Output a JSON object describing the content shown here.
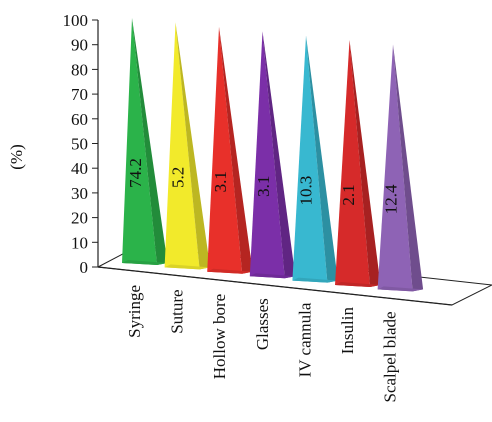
{
  "chart_data": {
    "type": "bar",
    "title": "",
    "xlabel": "",
    "ylabel": "(%)",
    "ylim": [
      0,
      100
    ],
    "yticks": [
      0,
      10,
      20,
      30,
      40,
      50,
      60,
      70,
      80,
      90,
      100
    ],
    "categories": [
      "Syringe",
      "Suture",
      "Hollow bore",
      "Glasses",
      "IV cannula",
      "Insulin",
      "Scalpel blade"
    ],
    "values": [
      74.2,
      5.2,
      3.1,
      3.1,
      10.3,
      2.1,
      12.4
    ],
    "data_labels": [
      "74.2",
      "5.2",
      "3.1",
      "3.1",
      "10.3",
      "2.1",
      "12.4"
    ],
    "bar_heights_percent": [
      100,
      100,
      100,
      100,
      100,
      100,
      100
    ],
    "colors": [
      "#2bb34a",
      "#f2ea2b",
      "#e8302a",
      "#7b2fa8",
      "#38b8d0",
      "#d62a2a",
      "#8e63b5"
    ],
    "shape": "pyramid",
    "grid": false,
    "legend": "none"
  }
}
